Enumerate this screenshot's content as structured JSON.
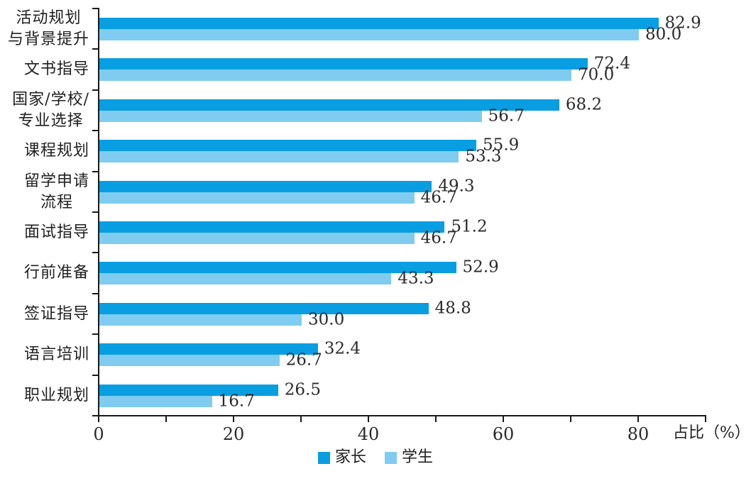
{
  "chart_data": {
    "type": "bar",
    "orientation": "horizontal",
    "title": "",
    "xlabel": "占比（%）",
    "ylabel": "",
    "xlim": [
      0,
      90
    ],
    "xtick_labels": [
      0,
      20,
      40,
      60,
      80
    ],
    "xtick_minor": [
      0,
      10,
      20,
      30,
      40,
      50,
      60,
      70,
      80,
      90
    ],
    "grid": false,
    "legend_position": "bottom",
    "value_label_decimals": 1,
    "categories": [
      [
        "活动规划",
        "与背景提升"
      ],
      [
        "文书指导"
      ],
      [
        "国家/学校/",
        "专业选择"
      ],
      [
        "课程规划"
      ],
      [
        "留学申请",
        "流程"
      ],
      [
        "面试指导"
      ],
      [
        "行前准备"
      ],
      [
        "签证指导"
      ],
      [
        "语言培训"
      ],
      [
        "职业规划"
      ]
    ],
    "series": [
      {
        "name": "家长",
        "color": "#089ee1",
        "values": [
          82.9,
          72.4,
          68.2,
          55.9,
          49.3,
          51.2,
          52.9,
          48.8,
          32.4,
          26.5
        ]
      },
      {
        "name": "学生",
        "color": "#80ccf0",
        "values": [
          80.0,
          70.0,
          56.7,
          53.3,
          46.7,
          46.7,
          43.3,
          30.0,
          26.7,
          16.7
        ]
      }
    ],
    "colors": {
      "axis": "#1a1a1a",
      "text": "#2b2b2b"
    }
  }
}
